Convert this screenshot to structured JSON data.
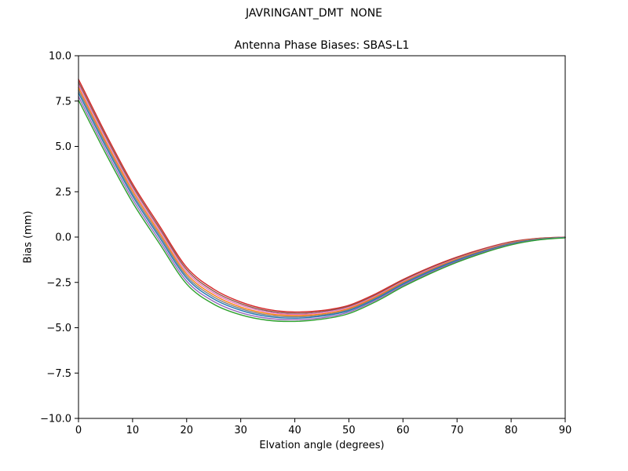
{
  "chart_data": {
    "type": "line",
    "title": "JAVRINGANT_DMT  NONE",
    "subtitle": "Antenna Phase Biases: SBAS-L1",
    "xlabel": "Elvation angle (degrees)",
    "ylabel": "Bias (mm)",
    "xlim": [
      0,
      90
    ],
    "ylim": [
      -10,
      10
    ],
    "grid": false,
    "legend_position": "none",
    "xticks": {
      "values": [
        0,
        10,
        20,
        30,
        40,
        50,
        60,
        70,
        80,
        90
      ],
      "labels": [
        "0",
        "10",
        "20",
        "30",
        "40",
        "50",
        "60",
        "70",
        "80",
        "90"
      ]
    },
    "yticks": {
      "values": [
        -10,
        -7.5,
        -5,
        -2.5,
        0,
        2.5,
        5,
        7.5,
        10
      ],
      "labels": [
        "−10.0",
        "−7.5",
        "−5.0",
        "−2.5",
        "0.0",
        "2.5",
        "5.0",
        "7.5",
        "10.0"
      ]
    },
    "x": [
      0,
      5,
      10,
      15,
      20,
      25,
      30,
      35,
      40,
      45,
      50,
      55,
      60,
      65,
      70,
      75,
      80,
      85,
      90
    ],
    "series": [
      {
        "name": "line-1",
        "color": "#d62728",
        "values": [
          8.7,
          5.72,
          2.94,
          0.61,
          -1.67,
          -2.87,
          -3.58,
          -3.99,
          -4.13,
          -4.05,
          -3.76,
          -3.12,
          -2.34,
          -1.67,
          -1.1,
          -0.63,
          -0.26,
          -0.07,
          0.0
        ]
      },
      {
        "name": "line-2",
        "color": "#8c564b",
        "values": [
          8.55,
          5.58,
          2.81,
          0.48,
          -1.79,
          -2.98,
          -3.67,
          -4.07,
          -4.2,
          -4.11,
          -3.82,
          -3.18,
          -2.39,
          -1.72,
          -1.14,
          -0.66,
          -0.28,
          -0.08,
          -0.01
        ]
      },
      {
        "name": "line-3",
        "color": "#e377c2",
        "values": [
          8.4,
          5.44,
          2.67,
          0.36,
          -1.91,
          -3.08,
          -3.76,
          -4.14,
          -4.27,
          -4.17,
          -3.88,
          -3.24,
          -2.45,
          -1.76,
          -1.18,
          -0.69,
          -0.31,
          -0.1,
          -0.01
        ]
      },
      {
        "name": "line-4",
        "color": "#ff7f0e",
        "values": [
          8.25,
          5.29,
          2.54,
          0.23,
          -2.03,
          -3.19,
          -3.86,
          -4.22,
          -4.33,
          -4.24,
          -3.94,
          -3.29,
          -2.5,
          -1.81,
          -1.21,
          -0.72,
          -0.33,
          -0.11,
          -0.02
        ]
      },
      {
        "name": "line-5",
        "color": "#7f7f7f",
        "values": [
          8.1,
          5.15,
          2.4,
          0.1,
          -2.15,
          -3.3,
          -3.95,
          -4.3,
          -4.4,
          -4.3,
          -4.0,
          -3.35,
          -2.55,
          -1.85,
          -1.25,
          -0.75,
          -0.35,
          -0.12,
          -0.02
        ]
      },
      {
        "name": "line-6",
        "color": "#1f77b4",
        "values": [
          7.95,
          5.01,
          2.27,
          -0.03,
          -2.27,
          -3.41,
          -4.04,
          -4.38,
          -4.47,
          -4.36,
          -4.06,
          -3.41,
          -2.6,
          -1.9,
          -1.29,
          -0.78,
          -0.37,
          -0.13,
          -0.02
        ]
      },
      {
        "name": "line-7",
        "color": "#9467bd",
        "values": [
          7.75,
          4.82,
          2.09,
          -0.2,
          -2.43,
          -3.55,
          -4.17,
          -4.48,
          -4.56,
          -4.45,
          -4.14,
          -3.48,
          -2.67,
          -1.96,
          -1.34,
          -0.82,
          -0.4,
          -0.15,
          -0.03
        ]
      },
      {
        "name": "line-8",
        "color": "#2ca02c",
        "values": [
          7.55,
          4.63,
          1.91,
          -0.37,
          -2.59,
          -3.7,
          -4.29,
          -4.59,
          -4.65,
          -4.53,
          -4.22,
          -3.56,
          -2.74,
          -2.02,
          -1.39,
          -0.86,
          -0.43,
          -0.16,
          -0.04
        ]
      }
    ]
  }
}
